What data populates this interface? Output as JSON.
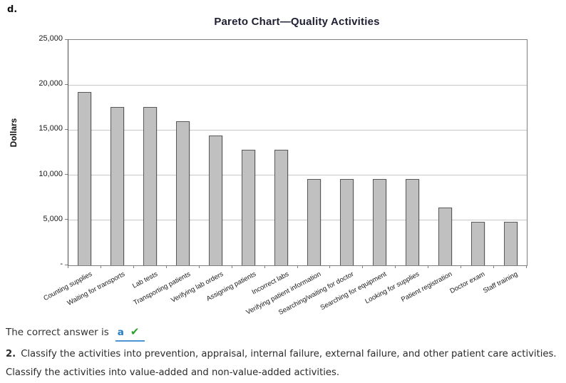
{
  "page": {
    "section_label": "d.",
    "answer_line": {
      "prefix": "The correct answer is",
      "answer": "a",
      "check_icon": "✔"
    },
    "question": {
      "number": "2.",
      "text": "Classify the activities into prevention, appraisal, internal failure, external failure, and other patient care activities. Classify the activities into value-added and non-value-added activities."
    }
  },
  "colors": {
    "bar_fill": "#c0c0c0",
    "bar_border": "#595959",
    "gridline": "#c8c8c8",
    "plot_border": "#7f7f7f",
    "answer_link_blue": "#2b7dc0",
    "answer_underline_blue": "#4c96d7",
    "check_green": "#28a228"
  },
  "chart_data": {
    "type": "bar",
    "title": "Pareto Chart—Quality Activities",
    "ylabel": "Dollars",
    "xlabel": "",
    "ylim": [
      0,
      25000
    ],
    "ytick_interval": 5000,
    "ytick_labels": [
      "25,000",
      "20,000",
      "15,000",
      "10,000",
      "5,000",
      "-"
    ],
    "grid": true,
    "legend": false,
    "categories": [
      "Counting supplies",
      "Waiting for transports",
      "Lab tests",
      "Transporting patients",
      "Verifying lab orders",
      "Assigning patients",
      "Incorrect labs",
      "Verifying patient information",
      "Searching/waiting for doctor",
      "Searching for equipment",
      "Looking for supplies",
      "Patient registration",
      "Doctor exam",
      "Staff training"
    ],
    "values": [
      19200,
      17600,
      17600,
      16000,
      14400,
      12800,
      12800,
      9600,
      9600,
      9600,
      9600,
      6400,
      4800,
      4800
    ]
  }
}
